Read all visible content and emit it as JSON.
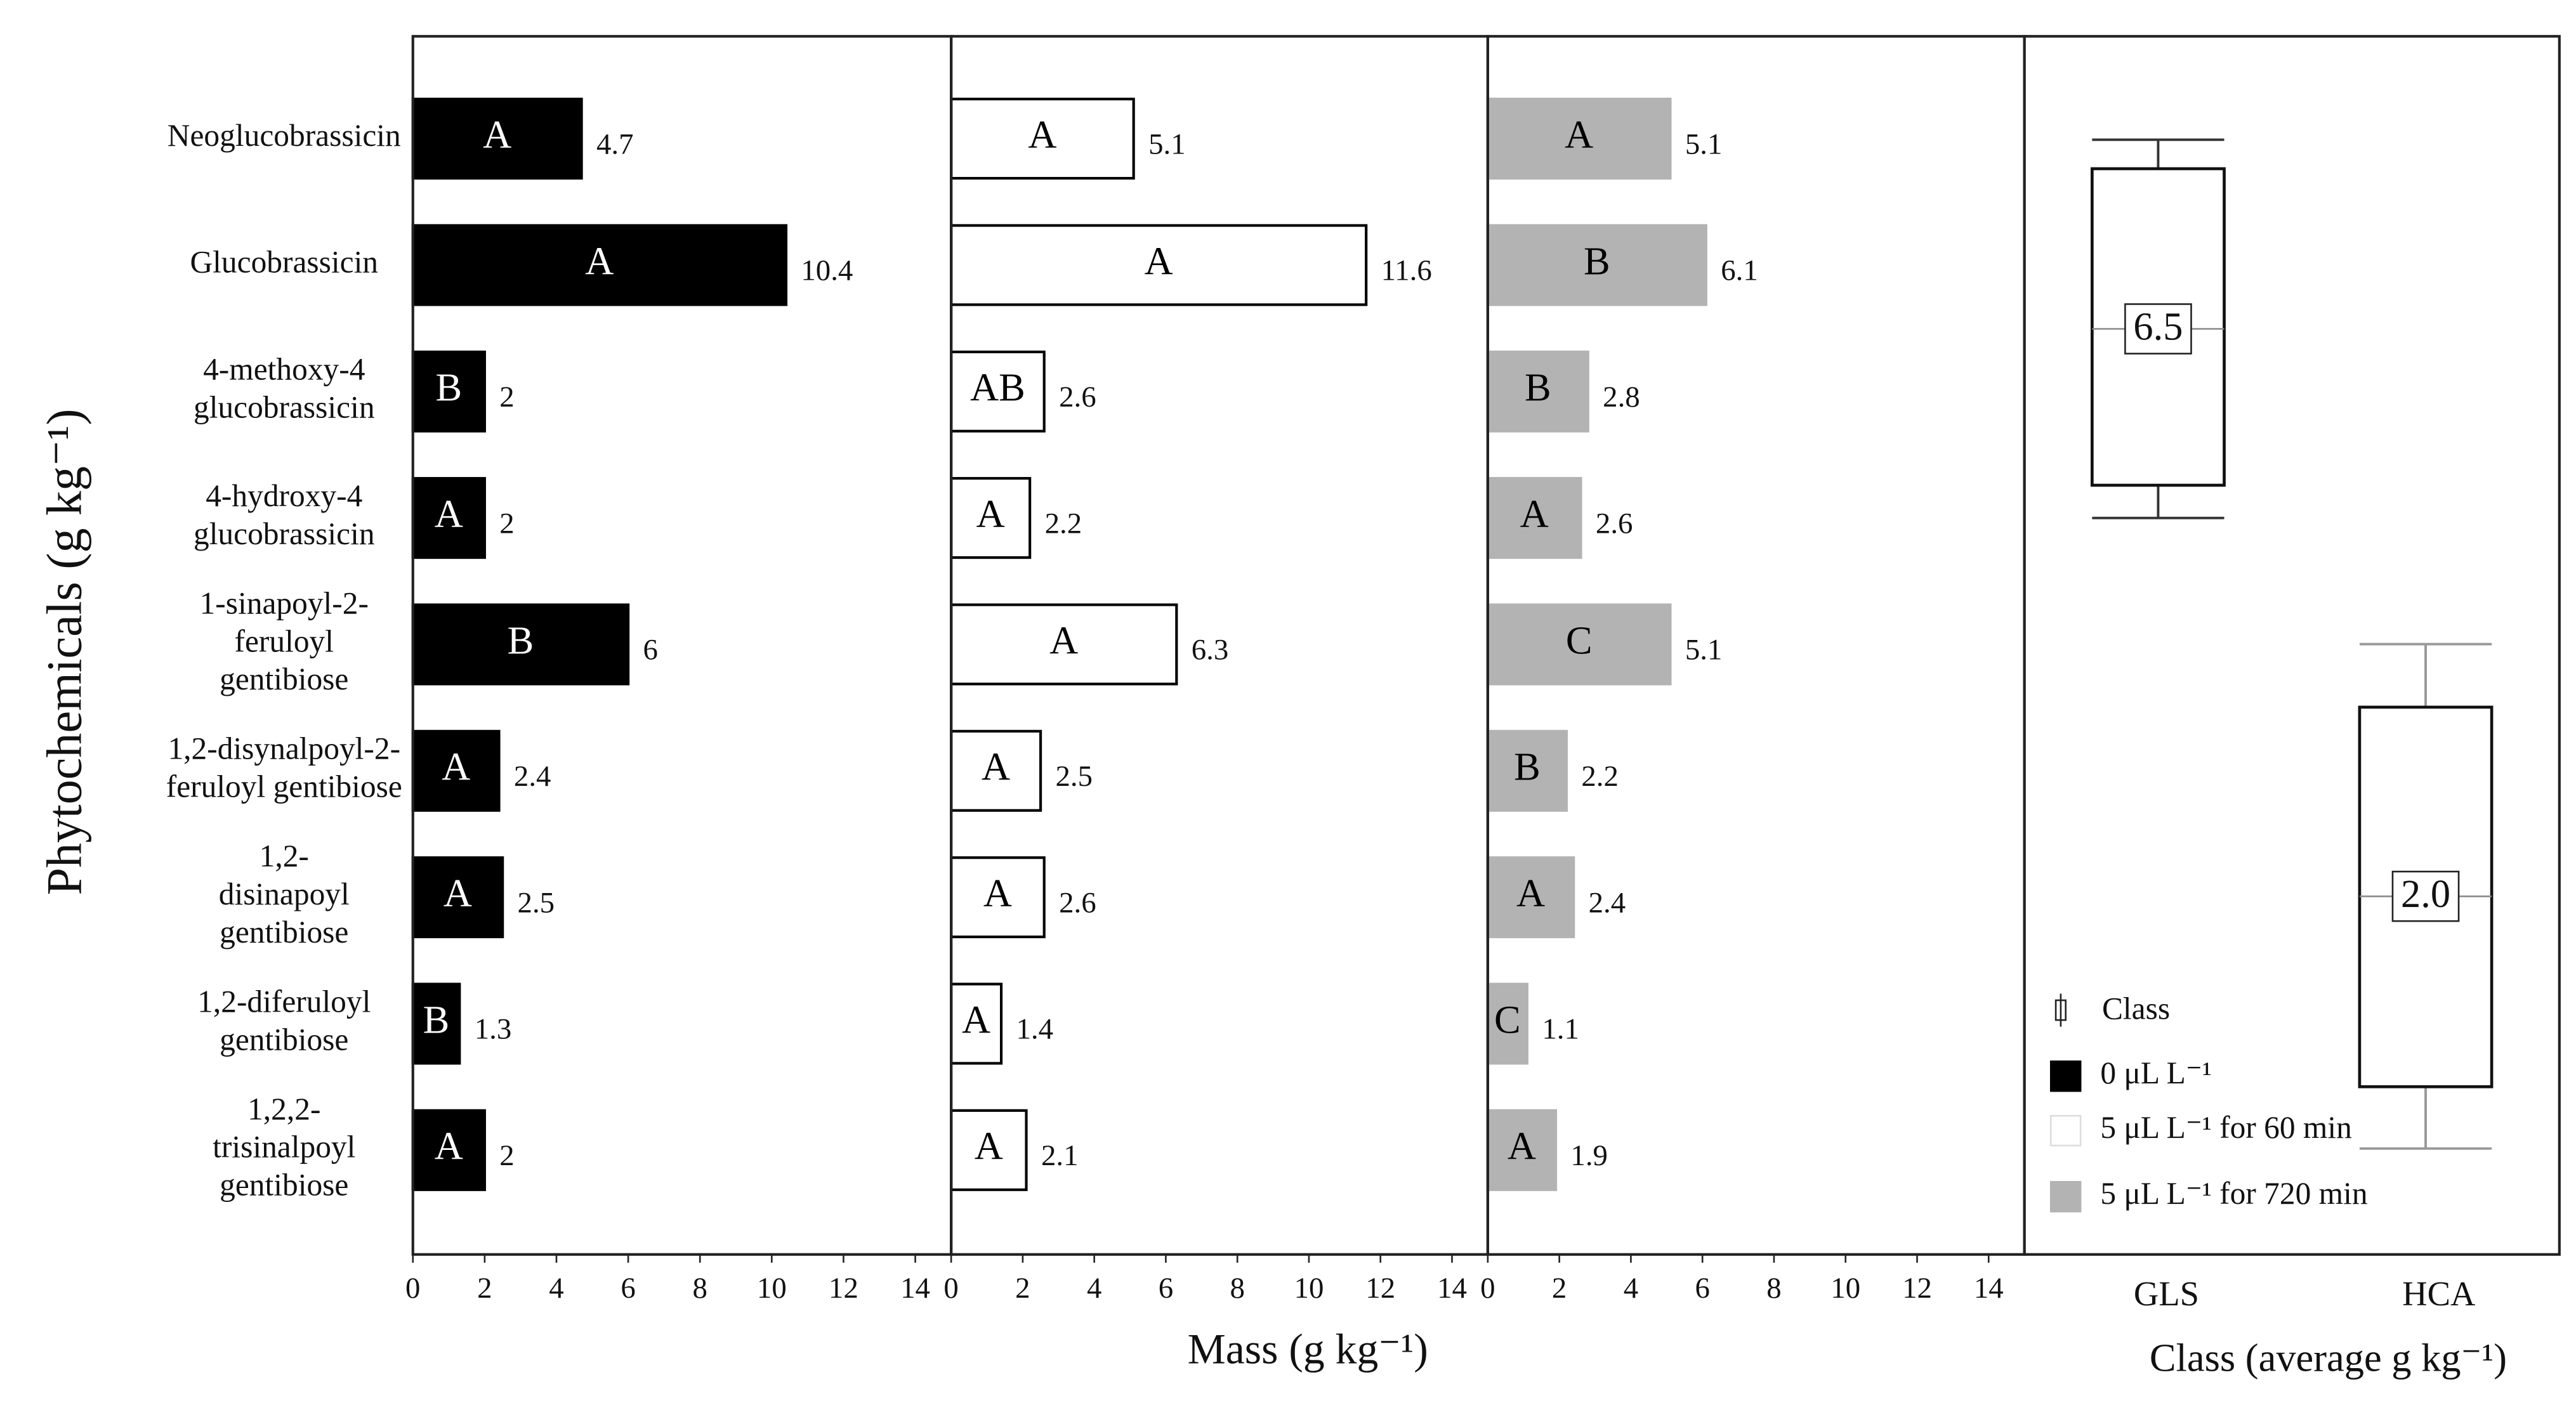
{
  "chart_data": [
    {
      "type": "bar",
      "orientation": "horizontal",
      "name": "0 μL L⁻¹",
      "color": "#000000",
      "stroke": "#000000",
      "letter_color": "#ffffff",
      "y_label": "Phytochemicals (g kg⁻¹)",
      "categories": [
        [
          "Neoglucobrassicin"
        ],
        [
          "Glucobrassicin"
        ],
        [
          "4-methoxy-4",
          "glucobrassicin"
        ],
        [
          "4-hydroxy-4",
          "glucobrassicin"
        ],
        [
          "1-sinapoyl-2-",
          "feruloyl",
          "gentibiose"
        ],
        [
          "1,2-disynalpoyl-2-",
          "feruloyl gentibiose"
        ],
        [
          "1,2-",
          "disinapoyl",
          "gentibiose"
        ],
        [
          "1,2-diferuloyl",
          "gentibiose"
        ],
        [
          "1,2,2-",
          "trisinalpoyl",
          "gentibiose"
        ]
      ],
      "values": [
        4.7,
        10.4,
        2,
        2,
        6,
        2.4,
        2.5,
        1.3,
        2
      ],
      "letters": [
        "A",
        "A",
        "B",
        "A",
        "B",
        "A",
        "A",
        "B",
        "A"
      ],
      "xlim": [
        0,
        15
      ],
      "xticks": [
        0,
        2,
        4,
        6,
        8,
        10,
        12,
        14
      ]
    },
    {
      "type": "bar",
      "orientation": "horizontal",
      "name": "5 μL L⁻¹ for 60 min",
      "color": "#ffffff",
      "stroke": "#000000",
      "letter_color": "#000000",
      "x_label": "Mass (g kg⁻¹)",
      "values": [
        5.1,
        11.6,
        2.6,
        2.2,
        6.3,
        2.5,
        2.6,
        1.4,
        2.1
      ],
      "letters": [
        "A",
        "A",
        "AB",
        "A",
        "A",
        "A",
        "A",
        "A",
        "A"
      ],
      "xlim": [
        0,
        15
      ],
      "xticks": [
        0,
        2,
        4,
        6,
        8,
        10,
        12,
        14
      ]
    },
    {
      "type": "bar",
      "orientation": "horizontal",
      "name": "5 μL L⁻¹ for 720 min",
      "color": "#b3b3b3",
      "stroke": "#b3b3b3",
      "letter_color": "#000000",
      "values": [
        5.1,
        6.1,
        2.8,
        2.6,
        5.1,
        2.2,
        2.4,
        1.1,
        1.9
      ],
      "letters": [
        "A",
        "B",
        "B",
        "A",
        "C",
        "B",
        "A",
        "C",
        "A"
      ],
      "xlim": [
        0,
        15
      ],
      "xticks": [
        0,
        2,
        4,
        6,
        8,
        10,
        12,
        14
      ]
    },
    {
      "type": "box",
      "x_label": "Class (average g kg⁻¹)",
      "legend_label": "Class",
      "categories": [
        "GLS",
        "HCA"
      ],
      "min": [
        5.0,
        0.0
      ],
      "q1": [
        5.26,
        0.49
      ],
      "median": [
        6.5,
        2.0
      ],
      "q3": [
        7.77,
        3.5
      ],
      "max": [
        8.0,
        4.0
      ],
      "median_labels": [
        "6.5",
        "2.0"
      ],
      "whisker_colors": [
        "#333333",
        "#999999"
      ],
      "ylim": [
        -0.84,
        8.82
      ]
    }
  ]
}
